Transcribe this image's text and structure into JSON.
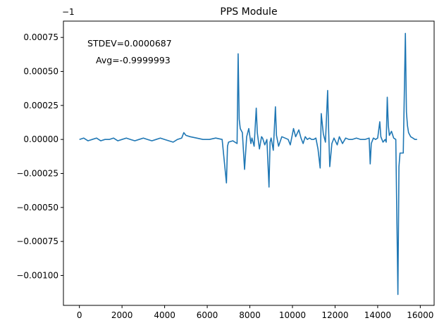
{
  "chart_data": {
    "type": "line",
    "title": "PPS Module",
    "xlabel": "",
    "ylabel": "",
    "offset_label": "−1",
    "offset": -1,
    "xlim": [
      -750,
      16650
    ],
    "ylim": [
      -0.00122,
      0.00087
    ],
    "x_ticks": [
      0,
      2000,
      4000,
      6000,
      8000,
      10000,
      12000,
      14000,
      16000
    ],
    "x_tick_labels": [
      "0",
      "2000",
      "4000",
      "6000",
      "8000",
      "10000",
      "12000",
      "14000",
      "16000"
    ],
    "y_ticks": [
      0.00075,
      0.0005,
      0.00025,
      0.0,
      -0.00025,
      -0.0005,
      -0.00075,
      -0.001
    ],
    "y_tick_labels": [
      "0.00075",
      "0.00050",
      "0.00025",
      "0.00000",
      "−0.00025",
      "−0.00050",
      "−0.00075",
      "−0.00100"
    ],
    "grid": false,
    "legend": "none",
    "annotations": [
      "STDEV=0.0000687",
      "Avg=-0.9999993"
    ],
    "line_color": "#1f77b4",
    "series": [
      {
        "x": [
          0,
          200,
          400,
          600,
          800,
          1000,
          1200,
          1400,
          1600,
          1800,
          2000,
          2200,
          2400,
          2600,
          2800,
          3000,
          3200,
          3400,
          3600,
          3800,
          4000,
          4200,
          4400,
          4600,
          4800,
          4900,
          5000,
          5200,
          5500,
          5800,
          6100,
          6400,
          6700,
          6900,
          6950,
          7000,
          7200,
          7400,
          7450,
          7500,
          7550,
          7650,
          7750,
          7850,
          7950,
          8050,
          8100,
          8200,
          8300,
          8350,
          8450,
          8550,
          8600,
          8700,
          8800,
          8900,
          8950,
          9000,
          9100,
          9200,
          9250,
          9350,
          9500,
          9650,
          9800,
          9900,
          10050,
          10150,
          10300,
          10400,
          10500,
          10600,
          10700,
          10800,
          10900,
          11000,
          11100,
          11200,
          11300,
          11350,
          11450,
          11550,
          11650,
          11700,
          11750,
          11850,
          11950,
          12100,
          12200,
          12350,
          12500,
          12650,
          12800,
          13000,
          13200,
          13400,
          13600,
          13650,
          13700,
          13800,
          13900,
          14000,
          14100,
          14150,
          14250,
          14350,
          14400,
          14450,
          14500,
          14550,
          14650,
          14750,
          14850,
          14950,
          15000,
          15050,
          15100,
          15200,
          15300,
          15350,
          15400,
          15450,
          15550,
          15650,
          15750,
          15850
        ],
        "values": [
          0.0,
          1e-05,
          -1e-05,
          0.0,
          1e-05,
          -1e-05,
          0.0,
          0.0,
          1e-05,
          -1e-05,
          0.0,
          1e-05,
          0.0,
          -1e-05,
          0.0,
          1e-05,
          0.0,
          -1e-05,
          0.0,
          1e-05,
          0.0,
          -1e-05,
          -2e-05,
          0.0,
          1e-05,
          5e-05,
          3e-05,
          2e-05,
          1e-05,
          0.0,
          0.0,
          1e-05,
          0.0,
          -0.00032,
          -5e-05,
          -2e-05,
          -1e-05,
          -3e-05,
          0.00063,
          0.00015,
          8e-05,
          5e-05,
          -0.00022,
          2e-05,
          8e-05,
          -3e-05,
          1e-05,
          -5e-05,
          0.00023,
          5e-05,
          -7e-05,
          2e-05,
          1e-05,
          -4e-05,
          0.0,
          -0.00035,
          -2e-05,
          1e-05,
          -8e-05,
          0.00024,
          3e-05,
          -5e-05,
          2e-05,
          1e-05,
          0.0,
          -4e-05,
          8e-05,
          2e-05,
          7e-05,
          1e-05,
          -3e-05,
          2e-05,
          0.0,
          1e-05,
          0.0,
          0.0,
          1e-05,
          -7e-05,
          -0.00021,
          0.00019,
          4e-05,
          -2e-05,
          0.00036,
          5e-05,
          -0.0002,
          -3e-05,
          1e-05,
          -4e-05,
          2e-05,
          -3e-05,
          1e-05,
          0.0,
          0.0,
          1e-05,
          0.0,
          0.0,
          1e-05,
          -0.00018,
          -3e-05,
          1e-05,
          0.0,
          1e-05,
          0.00013,
          2e-05,
          -2e-05,
          0.0,
          -2e-05,
          0.00031,
          0.0001,
          3e-05,
          6e-05,
          1e-05,
          0.0,
          -0.00114,
          -0.0002,
          -0.0001,
          -0.0001,
          -0.0001,
          0.00078,
          0.0002,
          0.0001,
          5e-05,
          2e-05,
          1e-05,
          0.0,
          0.0
        ]
      }
    ]
  }
}
